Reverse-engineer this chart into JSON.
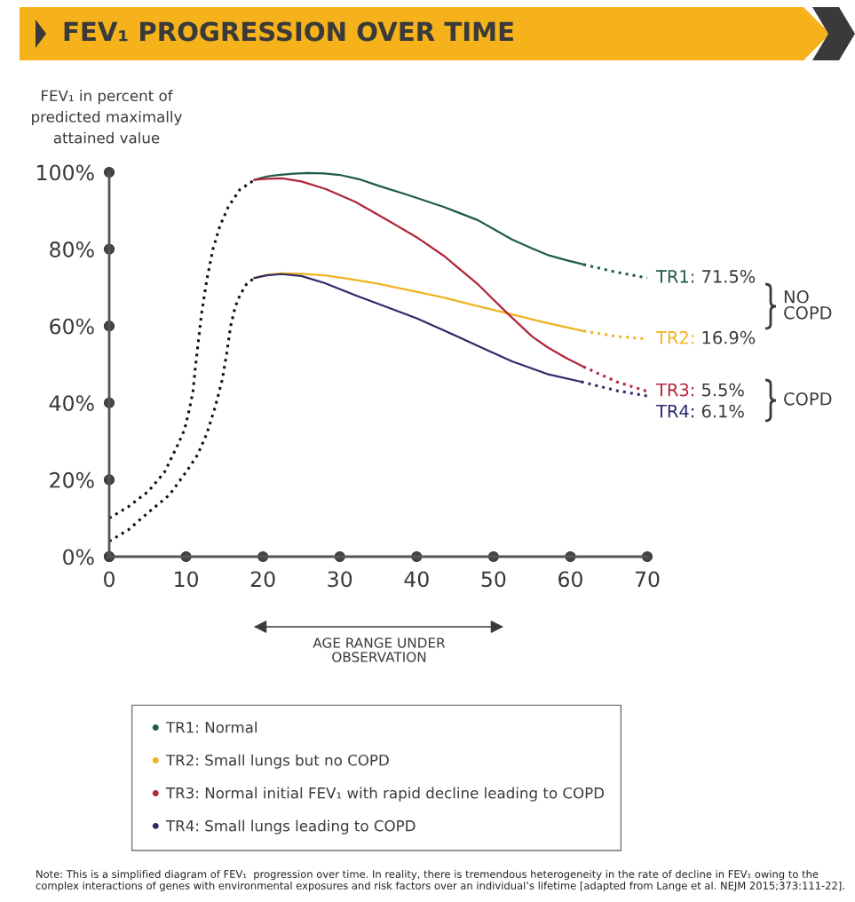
{
  "chart_data": {
    "type": "line",
    "title": "FEV₁ PROGRESSION OVER TIME",
    "ylabel": "FEV₁ in percent of\npredicted maximally\nattained value",
    "xlim": [
      0,
      70
    ],
    "xticks": [
      0,
      10,
      20,
      30,
      40,
      50,
      60,
      70
    ],
    "ylim": [
      0,
      100
    ],
    "yticks": [
      {
        "value": 0,
        "label": "0%"
      },
      {
        "value": 20,
        "label": "20%"
      },
      {
        "value": 40,
        "label": "40%"
      },
      {
        "value": 60,
        "label": "60%"
      },
      {
        "value": 80,
        "label": "80%"
      },
      {
        "value": 100,
        "label": "100%"
      }
    ],
    "grid": false,
    "legend": "bottom",
    "marker": "none",
    "series": [
      {
        "color": "#111111",
        "line_style": "dotted",
        "x": [
          0,
          2.5,
          5.1,
          7.2,
          8.9,
          9.8,
          10.4,
          10.9,
          11.2,
          11.6,
          12,
          12.7,
          13.5,
          14.4,
          15.5,
          17,
          18.9
        ],
        "values": [
          10,
          13,
          17,
          22,
          29,
          33,
          38,
          43,
          49,
          56,
          63,
          72,
          80,
          86,
          91,
          95.5,
          98
        ]
      },
      {
        "color": "#111111",
        "line_style": "dotted",
        "x": [
          0,
          2.5,
          5.1,
          7.8,
          10,
          11.5,
          12.7,
          13.8,
          14.7,
          15.3,
          15.8,
          16.4,
          17,
          17.9,
          18.9
        ],
        "values": [
          4,
          7,
          11.5,
          16,
          22,
          26.5,
          32,
          39,
          46,
          53,
          60,
          65,
          68,
          71,
          72.5
        ]
      },
      {
        "name": "TR1: Normal",
        "color": "#1e5c46",
        "line_style": "solid",
        "x": [
          18.9,
          20.5,
          22,
          24,
          25.9,
          28,
          30,
          32.5,
          35,
          39,
          43.5,
          48,
          52.4,
          55,
          57,
          59.5,
          61.7
        ],
        "values": [
          98,
          98.9,
          99.3,
          99.6,
          99.8,
          99.7,
          99.3,
          98.2,
          96.5,
          94,
          91,
          87.5,
          82.5,
          80.2,
          78.5,
          77.1,
          76
        ]
      },
      {
        "name": "TR2: Small lungs but no COPD",
        "color": "#f0b323",
        "line_style": "solid",
        "x": [
          18.9,
          20.5,
          22.4,
          25,
          28,
          31,
          35,
          39,
          43.5,
          47.5,
          51.8,
          56.5,
          61.7
        ],
        "values": [
          72.5,
          73.3,
          73.7,
          73.6,
          73.2,
          72.3,
          71,
          69.3,
          67.4,
          65.4,
          63.3,
          61,
          58.7
        ]
      },
      {
        "name": "TR3: Normal initial FEV₁ with rapid decline leading to COPD",
        "color": "#b0263a",
        "line_style": "solid",
        "x": [
          18.9,
          20.5,
          22.5,
          25,
          28.2,
          32,
          35.8,
          40,
          43.5,
          48,
          51.8,
          55,
          57,
          59.5,
          61.7
        ],
        "values": [
          98,
          98.3,
          98.4,
          97.6,
          95.6,
          92.3,
          88,
          83.1,
          78.3,
          70.8,
          63.3,
          57.3,
          54.5,
          51.6,
          49.4
        ]
      },
      {
        "name": "TR4: Small lungs leading to COPD",
        "color": "#2e2a6b",
        "line_style": "solid",
        "x": [
          18.9,
          20.5,
          22.4,
          25,
          28,
          32,
          36,
          40,
          43.5,
          48,
          52.4,
          57,
          61.4
        ],
        "values": [
          72.5,
          73.2,
          73.5,
          73,
          71.2,
          68,
          65,
          62,
          58.9,
          54.8,
          50.8,
          47.5,
          45.5
        ]
      },
      {
        "color": "#1e5c46",
        "line_style": "dotted",
        "x": [
          61.7,
          66,
          70
        ],
        "values": [
          76,
          74,
          72.5
        ]
      },
      {
        "color": "#f0b323",
        "line_style": "dotted",
        "x": [
          61.7,
          66,
          70
        ],
        "values": [
          58.7,
          57.3,
          56.6
        ]
      },
      {
        "color": "#b0263a",
        "line_style": "dotted",
        "x": [
          61.7,
          66,
          70
        ],
        "values": [
          49.4,
          45.5,
          43
        ]
      },
      {
        "color": "#2e2a6b",
        "line_style": "dotted",
        "x": [
          61.4,
          66,
          70
        ],
        "values": [
          45.5,
          43.2,
          41.8
        ]
      }
    ],
    "annotations": [
      "AGE RANGE UNDER\nOBSERVATION",
      "TR1: 71.5%",
      "TR2: 16.9%",
      "TR3: 5.5%",
      "TR4: 6.1%",
      "NO\nCOPD",
      "COPD",
      "Note: This is a simplified diagram of FEV₁  progression over time. In reality, there is tremendous heterogeneity in the rate of decline in FEV₁ owing to the complex interactions of genes with environmental exposures and risk factors over an individual’s lifetime [adapted from Lange et al. NEJM 2015;373:111-22]."
    ]
  }
}
